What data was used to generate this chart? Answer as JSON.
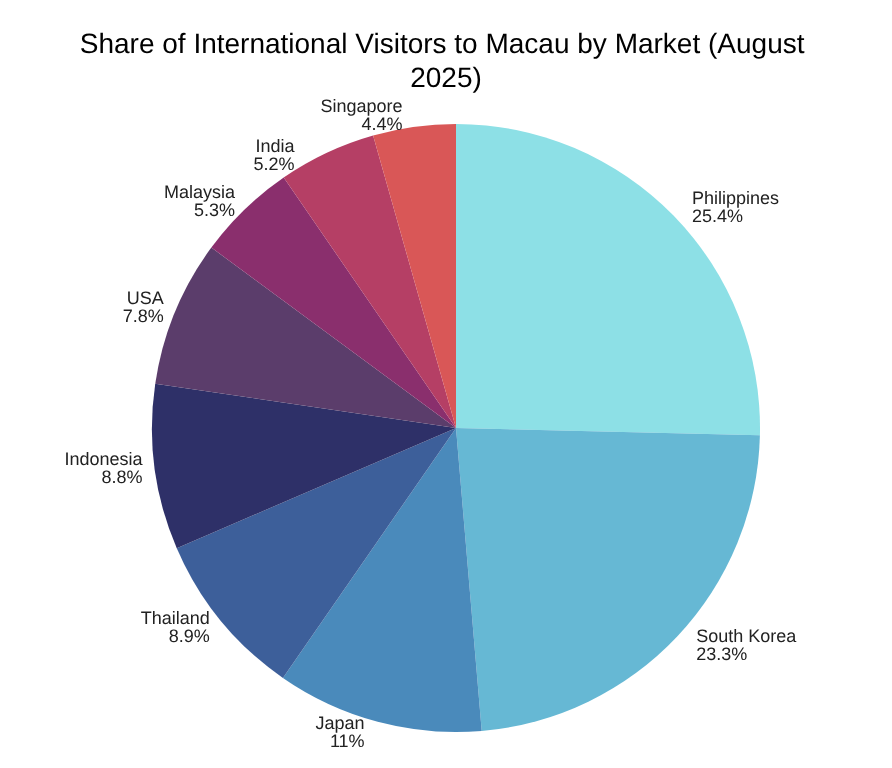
{
  "chart_data": {
    "type": "pie",
    "title": "Share of International Visitors to Macau by Market (August 2025)",
    "categories": [
      "Philippines",
      "South Korea",
      "Japan",
      "Thailand",
      "Indonesia",
      "USA",
      "Malaysia",
      "India",
      "Singapore"
    ],
    "values": [
      25.4,
      23.3,
      11,
      8.9,
      8.8,
      7.8,
      5.3,
      5.2,
      4.4
    ],
    "value_labels": [
      "25.4%",
      "23.3%",
      "11%",
      "8.9%",
      "8.8%",
      "7.8%",
      "5.3%",
      "5.2%",
      "4.4%"
    ],
    "colors": [
      "#8de0e6",
      "#66b8d4",
      "#4a8abb",
      "#3d5f9a",
      "#2e3068",
      "#5b3d6b",
      "#8a2f6d",
      "#b53f65",
      "#d95757"
    ],
    "legend": false
  }
}
